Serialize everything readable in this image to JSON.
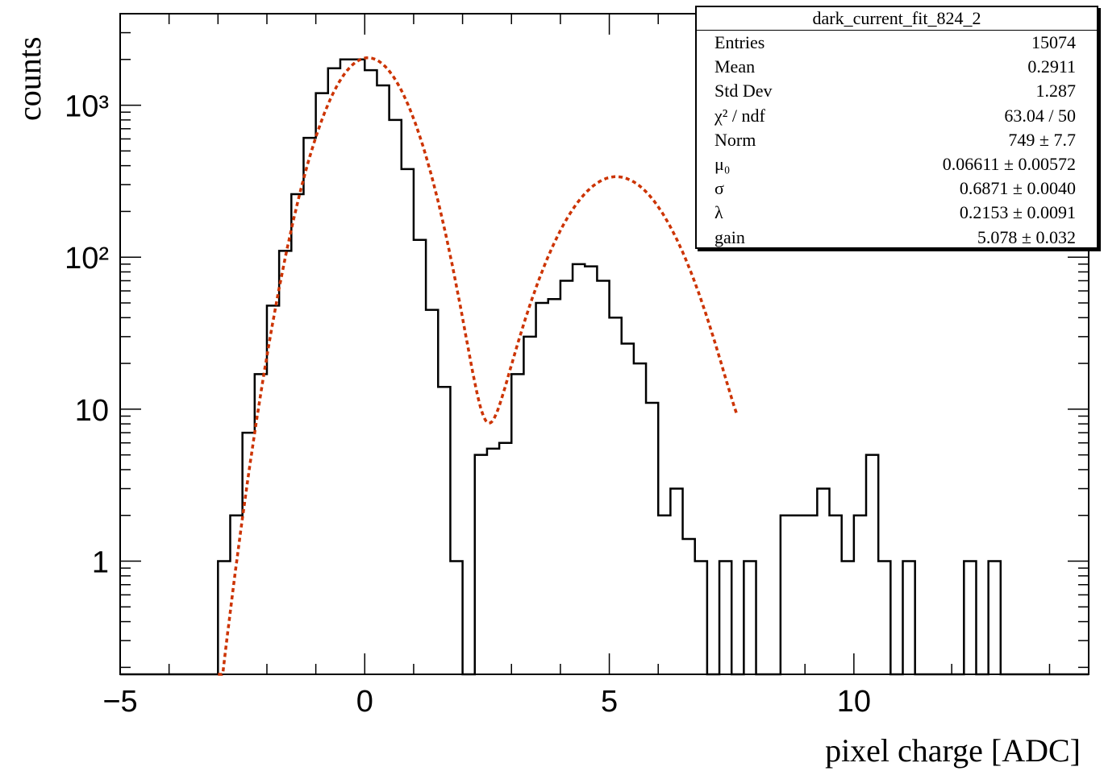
{
  "chart_data": {
    "type": "histogram",
    "xlabel": "pixel charge [ADC]",
    "ylabel": "counts",
    "xlim": [
      -5,
      14.8
    ],
    "ylim": [
      0.18,
      4000
    ],
    "y_scale": "log",
    "x_ticks": [
      -5,
      0,
      5,
      10
    ],
    "x_tick_labels": [
      "−5",
      "0",
      "5",
      "10"
    ],
    "y_ticks": [
      1,
      10,
      100,
      1000
    ],
    "y_tick_labels": [
      "1",
      "10",
      "10²",
      "10³"
    ],
    "grid": false,
    "bin_width": 0.25,
    "bins": {
      "x_start": -3.0,
      "counts": [
        1,
        2,
        7,
        17,
        48,
        110,
        260,
        610,
        1200,
        1750,
        2000,
        2000,
        1700,
        1350,
        800,
        380,
        130,
        45,
        14,
        1,
        0,
        5,
        5.5,
        6,
        17,
        30,
        50,
        53,
        70,
        90,
        87,
        70,
        40,
        27,
        20,
        11,
        2,
        3,
        1.4,
        1,
        0,
        1,
        0,
        1,
        0,
        0,
        2,
        2,
        2,
        3,
        2,
        1,
        2,
        5,
        1,
        0,
        1,
        0,
        0,
        0,
        0,
        1,
        0,
        1,
        0,
        0,
        0,
        0,
        0,
        0
      ]
    },
    "series": [
      {
        "name": "histogram",
        "color": "#000000",
        "style": "step"
      },
      {
        "name": "fit",
        "color": "#cc3300",
        "style": "dotted"
      }
    ],
    "stats_box": {
      "title": "dark_current_fit_824_2",
      "placement": "top-right",
      "rows": [
        {
          "label": "Entries",
          "value": "15074"
        },
        {
          "label": "Mean",
          "value": "0.2911"
        },
        {
          "label": "Std Dev",
          "value": "1.287"
        },
        {
          "label": "χ² / ndf",
          "value": "63.04 / 50"
        },
        {
          "label": "Norm",
          "value": "749 ± 7.7"
        },
        {
          "label": "μ₀",
          "value": "0.06611 ± 0.00572"
        },
        {
          "label": "σ",
          "value": "0.6871 ± 0.0040"
        },
        {
          "label": "λ",
          "value": "0.2153 ± 0.0091"
        },
        {
          "label": "gain",
          "value": "5.078 ± 0.032"
        }
      ]
    },
    "fit": {
      "norm": 749,
      "mu0": 0.06611,
      "sigma": 0.6871,
      "lambda": 0.2153,
      "gain": 5.078,
      "x_range": [
        -3.0,
        7.6
      ]
    }
  }
}
